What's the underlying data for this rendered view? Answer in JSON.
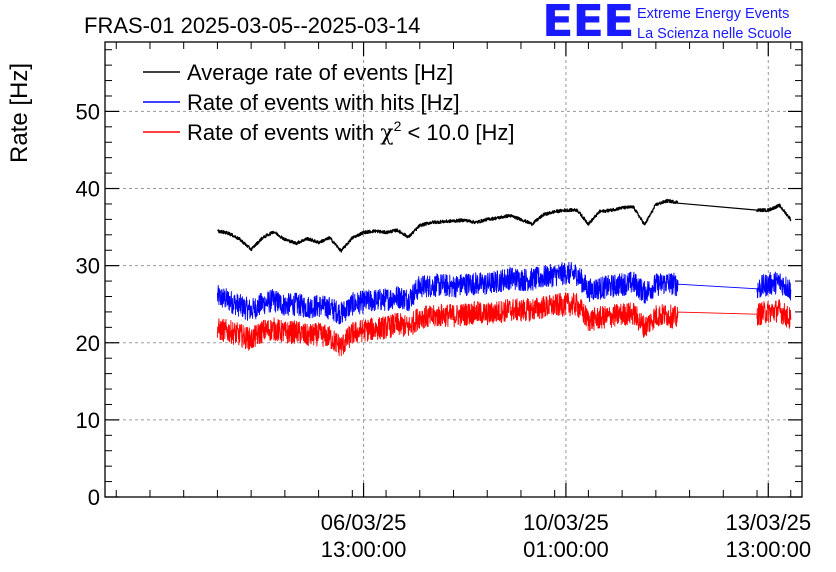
{
  "chart_data": {
    "type": "line",
    "title": "FRAS-01 2025-03-05--2025-03-14",
    "xlabel": "",
    "ylabel": "Rate [Hz]",
    "ylim": [
      0,
      59
    ],
    "yticks": [
      0,
      10,
      20,
      30,
      40,
      50
    ],
    "xlim_hours": [
      -20,
      104
    ],
    "xticks": [
      {
        "hours": 26,
        "date": "06/03/25",
        "time": "13:00:00"
      },
      {
        "hours": 62,
        "date": "10/03/25",
        "time": "01:00:00"
      },
      {
        "hours": 98,
        "date": "13/03/25",
        "time": "13:00:00"
      }
    ],
    "grid": true,
    "legend_position": "top-left",
    "series": [
      {
        "name": "Average rate of events [Hz]",
        "color": "#000000",
        "x": [
          0,
          2,
          4,
          6,
          8,
          10,
          12,
          14,
          16,
          18,
          20,
          22,
          24,
          26,
          28,
          30,
          32,
          34,
          36,
          38,
          40,
          42,
          44,
          46,
          48,
          50,
          52,
          54,
          56,
          58,
          60,
          62,
          64,
          66,
          68,
          70,
          72,
          74,
          76,
          78,
          80,
          82,
          84,
          86,
          88,
          90,
          92,
          94,
          96,
          98,
          100,
          102
        ],
        "y": [
          34.5,
          34.2,
          33.4,
          32.1,
          33.6,
          34.4,
          33.4,
          32.9,
          33.5,
          33.0,
          33.6,
          31.9,
          33.6,
          34.3,
          34.5,
          34.3,
          34.6,
          33.7,
          35.2,
          35.6,
          35.7,
          35.8,
          35.9,
          35.6,
          36.0,
          36.2,
          36.5,
          36.0,
          35.4,
          36.6,
          37.0,
          37.2,
          37.2,
          35.4,
          37.0,
          37.2,
          37.5,
          37.6,
          35.3,
          37.9,
          38.4,
          38.2,
          null,
          null,
          null,
          null,
          null,
          null,
          37.2,
          37.2,
          37.8,
          36.0
        ]
      },
      {
        "name": "Rate of events with hits [Hz]",
        "color": "#0000ff",
        "x": [
          0,
          2,
          4,
          6,
          8,
          10,
          12,
          14,
          16,
          18,
          20,
          22,
          24,
          26,
          28,
          30,
          32,
          34,
          36,
          38,
          40,
          42,
          44,
          46,
          48,
          50,
          52,
          54,
          56,
          58,
          60,
          62,
          64,
          66,
          68,
          70,
          72,
          74,
          76,
          78,
          80,
          82,
          84,
          86,
          88,
          90,
          92,
          94,
          96,
          98,
          100,
          102
        ],
        "y": [
          26.0,
          25.5,
          24.8,
          24.2,
          25.1,
          25.5,
          24.9,
          25.0,
          24.6,
          24.8,
          24.5,
          23.8,
          25.0,
          25.3,
          25.5,
          25.6,
          26.0,
          25.6,
          27.3,
          27.4,
          27.5,
          27.3,
          27.6,
          27.7,
          27.6,
          28.0,
          28.4,
          28.2,
          28.2,
          28.5,
          28.8,
          29.0,
          28.9,
          26.8,
          27.1,
          27.3,
          27.6,
          27.8,
          26.5,
          27.5,
          27.8,
          27.5,
          null,
          null,
          null,
          null,
          null,
          null,
          27.0,
          27.6,
          27.9,
          26.9
        ]
      },
      {
        "name": "Rate of events with χ² < 10.0 [Hz]",
        "color": "#ff0000",
        "x": [
          0,
          2,
          4,
          6,
          8,
          10,
          12,
          14,
          16,
          18,
          20,
          22,
          24,
          26,
          28,
          30,
          32,
          34,
          36,
          38,
          40,
          42,
          44,
          46,
          48,
          50,
          52,
          54,
          56,
          58,
          60,
          62,
          64,
          66,
          68,
          70,
          72,
          74,
          76,
          78,
          80,
          82,
          84,
          86,
          88,
          90,
          92,
          94,
          96,
          98,
          100,
          102
        ],
        "y": [
          21.7,
          21.5,
          21.0,
          20.4,
          21.5,
          21.8,
          21.3,
          21.4,
          20.9,
          21.1,
          20.7,
          19.5,
          21.2,
          21.6,
          21.8,
          22.0,
          22.4,
          22.0,
          23.4,
          23.3,
          23.6,
          23.5,
          23.7,
          23.9,
          23.7,
          24.0,
          24.3,
          24.2,
          24.3,
          24.6,
          24.8,
          25.0,
          24.9,
          22.9,
          23.2,
          23.4,
          23.7,
          23.8,
          22.0,
          23.5,
          23.6,
          23.1,
          null,
          null,
          null,
          null,
          null,
          null,
          23.7,
          24.0,
          24.2,
          23.0
        ]
      }
    ],
    "noise_amplitude": [
      0.2,
      1.5,
      1.5
    ],
    "legend_labels": [
      "Average rate of events [Hz]",
      "Rate of events with hits [Hz]",
      "Rate of events with "
    ]
  },
  "legend_chi_suffix": " < 10.0 [Hz]",
  "legend_chi": "χ",
  "legend_sup": "2",
  "logo": {
    "mark": "EEE",
    "line1": "Extreme Energy Events",
    "line2": "La Scienza nelle Scuole",
    "color": "#1a1aff"
  }
}
